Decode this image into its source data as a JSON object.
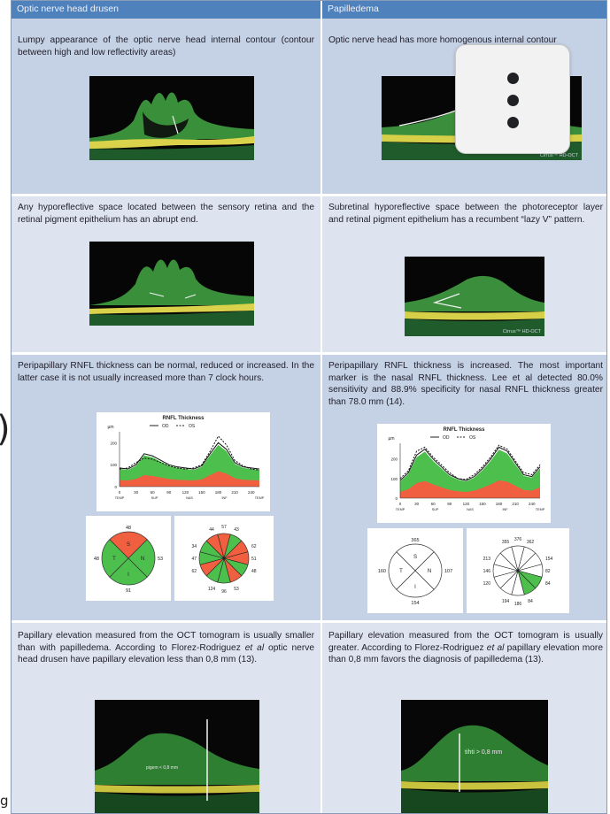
{
  "header": {
    "left_title": "Optic nerve head drusen",
    "right_title": "Papilledema"
  },
  "rows": [
    {
      "left_text": "Lumpy appearance of the optic nerve head internal contour (contour between high and low reflectivity areas)",
      "right_text": "Optic nerve head has more homogenous internal contour",
      "right_image_caption": "Cirrus™ HD-OCT"
    },
    {
      "left_text": "Any hyporeflective space located between the sensory retina and the retinal pigment epithelium has an abrupt end.",
      "right_text": "Subretinal hyporeflective space between the photoreceptor layer and retinal pigment epithelium has a recumbent “lazy V” pattern.",
      "right_image_caption": "Cirrus™ HD-OCT"
    },
    {
      "left_text": "Peripapillary RNFL thickness can be normal, reduced or increased. In the latter case it is not usually increased more than 7 clock hours.",
      "right_text": "Peripapillary RNFL thickness is increased. The most important marker is the nasal RNFL thickness. Lee et al detected 80.0% sensitivity and 88.9% specificity for nasal RNFL thickness greater than 78.0 mm (14)."
    },
    {
      "left_text_before": "Papillary elevation measured from the OCT tomogram is usually smaller than with papilledema. According to Florez-Rodriguez ",
      "left_text_italic": "et al",
      "left_text_after": " optic nerve head drusen have papillary elevation less than 0,8 mm (13).",
      "right_text_before": "Papillary elevation measured from the OCT tomogram is usually greater. According to Florez-Rodriguez ",
      "right_text_italic": "et al",
      "right_text_after": " papillary elevation more than 0,8 mm favors the diagnosis of papilledema (13).",
      "left_image_label": "pigem < 0,8 mm",
      "right_image_label": "tihti > 0,8 mm"
    }
  ],
  "rnfl_charts": [
    {
      "chart_data": {
        "type": "line",
        "title": "RNFL Thickness",
        "legend": [
          "OD",
          "OS"
        ],
        "ylabel": "µm",
        "yticks": [
          "0",
          "100",
          "200"
        ],
        "ylim": [
          0,
          250
        ],
        "xticks": [
          "0",
          "30",
          "60",
          "90",
          "120",
          "150",
          "180",
          "210",
          "240"
        ],
        "xlim": [
          0,
          255
        ],
        "xlabels_region": [
          "TEMP",
          "SUP",
          "NAS",
          "INF",
          "TEMP"
        ],
        "series": [
          {
            "name": "OD",
            "x": [
              0,
              15,
              30,
              45,
              60,
              75,
              90,
              105,
              120,
              135,
              150,
              165,
              180,
              195,
              210,
              225,
              240,
              255
            ],
            "y": [
              85,
              80,
              100,
              150,
              140,
              120,
              100,
              90,
              85,
              80,
              95,
              150,
              200,
              170,
              110,
              90,
              85,
              80
            ]
          },
          {
            "name": "OS",
            "x": [
              0,
              15,
              30,
              45,
              60,
              75,
              90,
              105,
              120,
              135,
              150,
              165,
              180,
              195,
              210,
              225,
              240,
              255
            ],
            "y": [
              80,
              85,
              110,
              130,
              125,
              110,
              95,
              85,
              80,
              85,
              100,
              160,
              230,
              190,
              120,
              95,
              80,
              75
            ]
          }
        ]
      },
      "quadrants": {
        "S": "48",
        "T": "48",
        "N": "53",
        "I": "91"
      },
      "clock_hours": {
        "top": [
          "44",
          "57",
          "43"
        ],
        "left": [
          "34",
          "47",
          "62"
        ],
        "right": [
          "62",
          "51",
          "48"
        ],
        "bottom": [
          "124",
          "96",
          "53"
        ]
      }
    },
    {
      "chart_data": {
        "type": "line",
        "title": "RNFL Thickness",
        "legend": [
          "OD",
          "OS"
        ],
        "ylabel": "µm",
        "yticks": [
          "0",
          "100",
          "200"
        ],
        "ylim": [
          0,
          280
        ],
        "xticks": [
          "0",
          "30",
          "60",
          "90",
          "120",
          "150",
          "180",
          "210",
          "240"
        ],
        "xlim": [
          0,
          255
        ],
        "xlabels_region": [
          "TEMP",
          "SUP",
          "NAS",
          "INF",
          "TEMP"
        ],
        "series": [
          {
            "name": "OD",
            "x": [
              0,
              15,
              30,
              45,
              60,
              75,
              90,
              105,
              120,
              135,
              150,
              165,
              180,
              195,
              210,
              225,
              240,
              255
            ],
            "y": [
              90,
              130,
              220,
              250,
              200,
              160,
              120,
              100,
              90,
              110,
              150,
              200,
              260,
              240,
              180,
              120,
              110,
              160
            ]
          },
          {
            "name": "OS",
            "x": [
              0,
              15,
              30,
              45,
              60,
              75,
              90,
              105,
              120,
              135,
              150,
              165,
              180,
              195,
              210,
              225,
              240,
              255
            ],
            "y": [
              100,
              140,
              240,
              260,
              210,
              170,
              130,
              100,
              95,
              120,
              160,
              210,
              270,
              250,
              190,
              130,
              120,
              170
            ]
          }
        ]
      },
      "quadrants": {
        "S": "365",
        "T": "160",
        "N": "107",
        "I": "154"
      },
      "clock_hours": {
        "top": [
          "355",
          "376",
          "362"
        ],
        "left": [
          "213",
          "146",
          "120"
        ],
        "right": [
          "154",
          "82",
          "84"
        ],
        "bottom": [
          "194",
          "186",
          "84"
        ]
      }
    }
  ],
  "side_glyphs": {
    "paren": ")",
    "g": "g"
  },
  "colors": {
    "header_bg": "#4f81bd",
    "cell_bg": "#c5d1e4",
    "normal_green": "#4dbf4d",
    "border_yellow": "#e8e24a",
    "thin_red": "#f06040"
  },
  "menu_icon": "more-vert-icon"
}
